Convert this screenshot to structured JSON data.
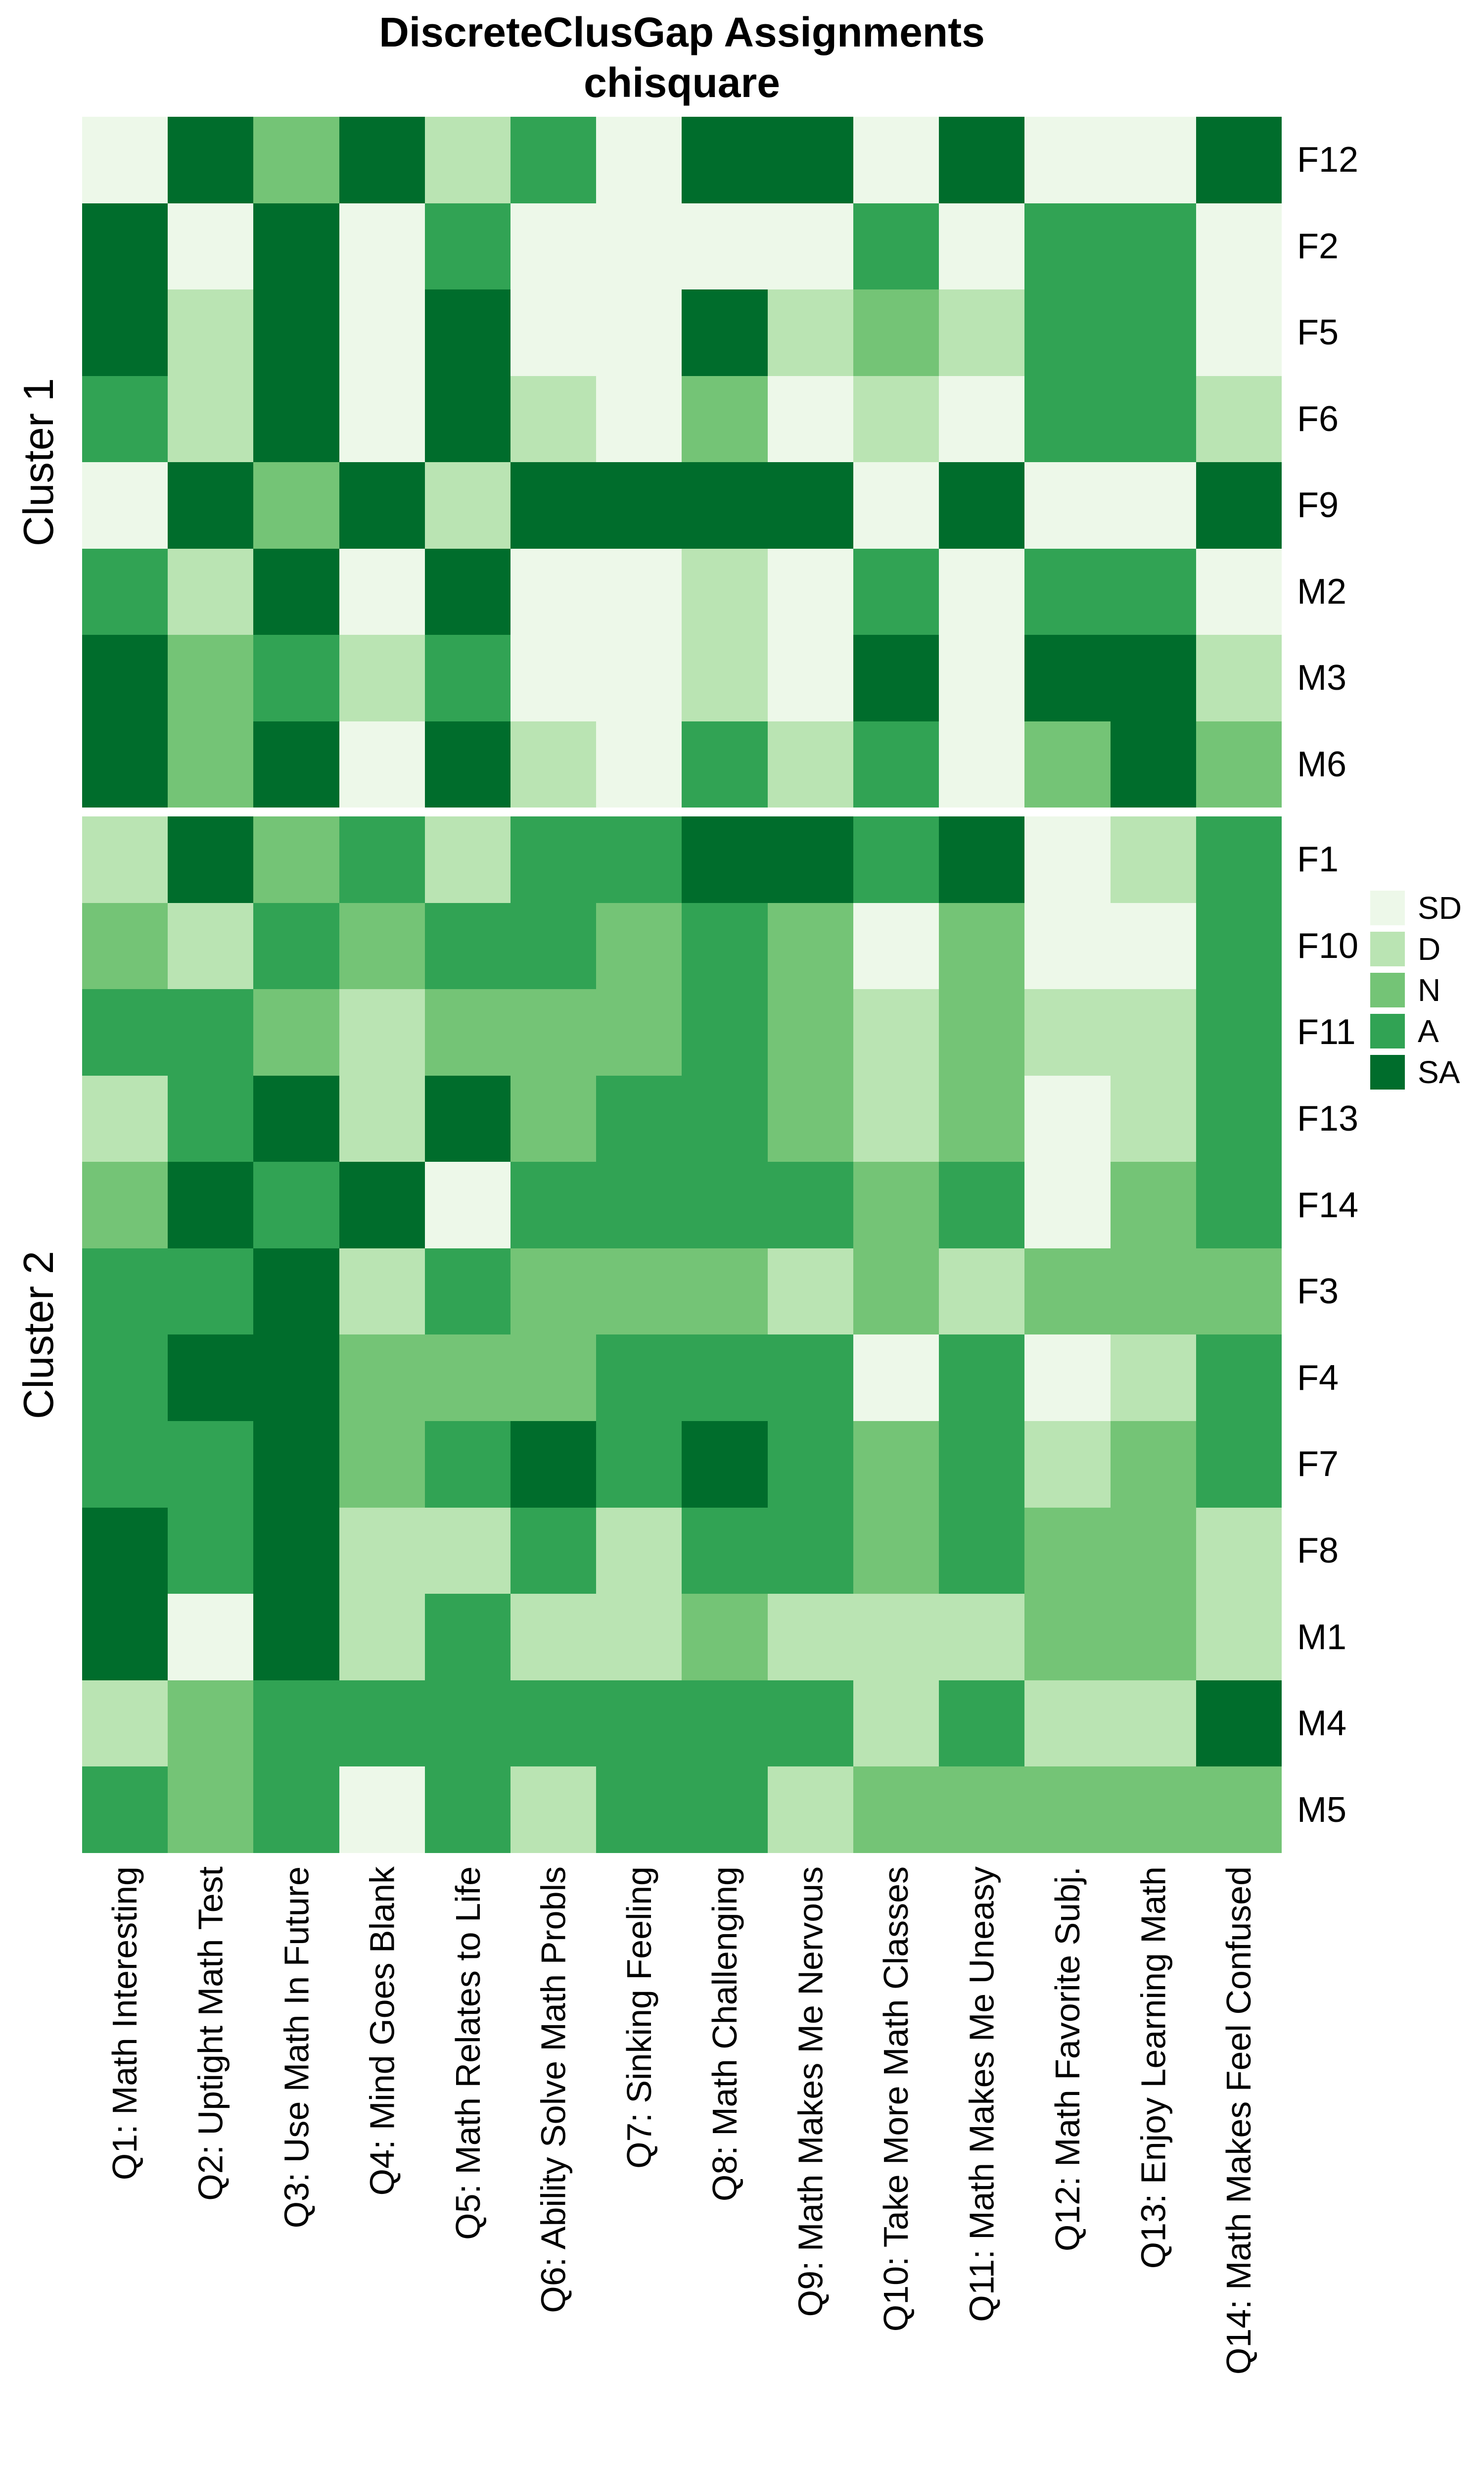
{
  "title": {
    "line1": "DiscreteClusGap Assignments",
    "line2": "chisquare"
  },
  "chart_data": {
    "type": "heatmap",
    "title": "DiscreteClusGap Assignments chisquare",
    "legend_position": "right",
    "legend": [
      {
        "label": "SD",
        "color": "#edf8e9"
      },
      {
        "label": "D",
        "color": "#bae4b3"
      },
      {
        "label": "N",
        "color": "#74c476"
      },
      {
        "label": "A",
        "color": "#31a354"
      },
      {
        "label": "SA",
        "color": "#006d2c"
      }
    ],
    "columns": [
      "Q1: Math Interesting",
      "Q2: Uptight Math Test",
      "Q3: Use Math In Future",
      "Q4: Mind Goes Blank",
      "Q5: Math Relates to Life",
      "Q6: Ability Solve Math Probls",
      "Q7: Sinking Feeling",
      "Q8: Math Challenging",
      "Q9: Math Makes Me Nervous",
      "Q10: Take More Math Classes",
      "Q11: Math Makes Me Uneasy",
      "Q12: Math Favorite Subj.",
      "Q13: Enjoy Learning Math",
      "Q14: Math Makes Feel Confused"
    ],
    "row_groups": [
      {
        "label": "Cluster 1",
        "rows": [
          "F12",
          "F2",
          "F5",
          "F6",
          "F9",
          "M2",
          "M3",
          "M6"
        ],
        "values": [
          [
            "SD",
            "SA",
            "N",
            "SA",
            "D",
            "A",
            "SD",
            "SA",
            "SA",
            "SD",
            "SA",
            "SD",
            "SD",
            "SA"
          ],
          [
            "SA",
            "SD",
            "SA",
            "SD",
            "A",
            "SD",
            "SD",
            "SD",
            "SD",
            "A",
            "SD",
            "A",
            "A",
            "SD"
          ],
          [
            "SA",
            "D",
            "SA",
            "SD",
            "SA",
            "SD",
            "SD",
            "SA",
            "D",
            "N",
            "D",
            "A",
            "A",
            "SD"
          ],
          [
            "A",
            "D",
            "SA",
            "SD",
            "SA",
            "D",
            "SD",
            "N",
            "SD",
            "D",
            "SD",
            "A",
            "A",
            "D"
          ],
          [
            "SD",
            "SA",
            "N",
            "SA",
            "D",
            "SA",
            "SA",
            "SA",
            "SA",
            "SD",
            "SA",
            "SD",
            "SD",
            "SA"
          ],
          [
            "A",
            "D",
            "SA",
            "SD",
            "SA",
            "SD",
            "SD",
            "D",
            "SD",
            "A",
            "SD",
            "A",
            "A",
            "SD"
          ],
          [
            "SA",
            "N",
            "A",
            "D",
            "A",
            "SD",
            "SD",
            "D",
            "SD",
            "SA",
            "SD",
            "SA",
            "SA",
            "D"
          ],
          [
            "SA",
            "N",
            "SA",
            "SD",
            "SA",
            "D",
            "SD",
            "A",
            "D",
            "A",
            "SD",
            "N",
            "SA",
            "N"
          ]
        ]
      },
      {
        "label": "Cluster 2",
        "rows": [
          "F1",
          "F10",
          "F11",
          "F13",
          "F14",
          "F3",
          "F4",
          "F7",
          "F8",
          "M1",
          "M4",
          "M5"
        ],
        "values": [
          [
            "D",
            "SA",
            "N",
            "A",
            "D",
            "A",
            "A",
            "SA",
            "SA",
            "A",
            "SA",
            "SD",
            "D",
            "A"
          ],
          [
            "N",
            "D",
            "A",
            "N",
            "A",
            "A",
            "N",
            "A",
            "N",
            "SD",
            "N",
            "SD",
            "SD",
            "A"
          ],
          [
            "A",
            "A",
            "N",
            "D",
            "N",
            "N",
            "N",
            "A",
            "N",
            "D",
            "N",
            "D",
            "D",
            "A"
          ],
          [
            "D",
            "A",
            "SA",
            "D",
            "SA",
            "N",
            "A",
            "A",
            "N",
            "D",
            "N",
            "SD",
            "D",
            "A"
          ],
          [
            "N",
            "SA",
            "A",
            "SA",
            "SD",
            "A",
            "A",
            "A",
            "A",
            "N",
            "A",
            "SD",
            "N",
            "A"
          ],
          [
            "A",
            "A",
            "SA",
            "D",
            "A",
            "N",
            "N",
            "N",
            "D",
            "N",
            "D",
            "N",
            "N",
            "N"
          ],
          [
            "A",
            "SA",
            "SA",
            "N",
            "N",
            "N",
            "A",
            "A",
            "A",
            "SD",
            "A",
            "SD",
            "D",
            "A"
          ],
          [
            "A",
            "A",
            "SA",
            "N",
            "A",
            "SA",
            "A",
            "SA",
            "A",
            "N",
            "A",
            "D",
            "N",
            "A"
          ],
          [
            "SA",
            "A",
            "SA",
            "D",
            "D",
            "A",
            "D",
            "A",
            "A",
            "N",
            "A",
            "N",
            "N",
            "D"
          ],
          [
            "SA",
            "SD",
            "SA",
            "D",
            "A",
            "D",
            "D",
            "N",
            "D",
            "D",
            "D",
            "N",
            "N",
            "D"
          ],
          [
            "D",
            "N",
            "A",
            "A",
            "A",
            "A",
            "A",
            "A",
            "A",
            "D",
            "A",
            "D",
            "D",
            "SA"
          ],
          [
            "A",
            "N",
            "A",
            "SD",
            "A",
            "D",
            "A",
            "A",
            "D",
            "N",
            "N",
            "N",
            "N",
            "N"
          ]
        ]
      }
    ]
  }
}
